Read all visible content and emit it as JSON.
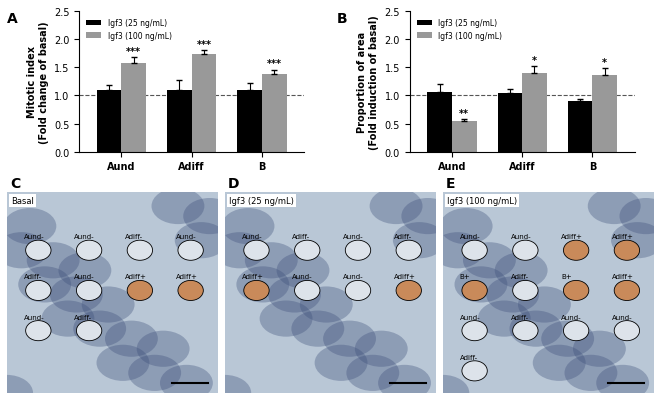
{
  "chart_data": [
    {
      "type": "bar",
      "panel": "A",
      "y_label": "Mitotic index\n(Fold change of basal)",
      "categories": [
        "Aund",
        "Adiff",
        "B"
      ],
      "series": [
        {
          "name": "Igf3 (25 ng/mL)",
          "color": "#000000",
          "values": [
            1.1,
            1.1,
            1.09
          ],
          "errors": [
            0.08,
            0.18,
            0.13
          ]
        },
        {
          "name": "Igf3 (100 ng/mL)",
          "color": "#999999",
          "values": [
            1.58,
            1.73,
            1.39
          ],
          "errors": [
            0.1,
            0.08,
            0.07
          ],
          "significance": [
            "***",
            "***",
            "***"
          ]
        }
      ],
      "baseline": 1.0,
      "ylim": [
        0,
        2.5
      ],
      "yticks": [
        {
          "value": 0,
          "label": "0.0"
        },
        {
          "value": 0.5,
          "label": "0.5"
        },
        {
          "value": 1,
          "label": "1.0"
        },
        {
          "value": 1.5,
          "label": "1.5"
        },
        {
          "value": 2,
          "label": "2.0"
        },
        {
          "value": 2.5,
          "label": "2.5"
        }
      ],
      "legend": "upper left"
    },
    {
      "type": "bar",
      "panel": "B",
      "y_label": "Proportion of area\n(Fold induction of basal)",
      "categories": [
        "Aund",
        "Adiff",
        "B"
      ],
      "series": [
        {
          "name": "Igf3 (25 ng/mL)",
          "color": "#000000",
          "values": [
            1.07,
            1.04,
            0.9
          ],
          "errors": [
            0.13,
            0.08,
            0.04
          ]
        },
        {
          "name": "Igf3 (100 ng/mL)",
          "color": "#999999",
          "values": [
            0.54,
            1.4,
            1.37
          ],
          "errors": [
            0.04,
            0.13,
            0.12
          ],
          "significance": [
            "**",
            "*",
            "*"
          ]
        }
      ],
      "baseline": 1.0,
      "ylim": [
        0,
        2.5
      ],
      "yticks": [
        {
          "value": 0,
          "label": "0.0"
        },
        {
          "value": 0.5,
          "label": "0.5"
        },
        {
          "value": 1,
          "label": "1.0"
        },
        {
          "value": 1.5,
          "label": "1.5"
        },
        {
          "value": 2,
          "label": "2.0"
        },
        {
          "value": 2.5,
          "label": "2.5"
        }
      ],
      "legend": "upper left"
    }
  ],
  "images": [
    {
      "panel": "C",
      "label": "Basal",
      "cell_labels": [
        "Aund-",
        "Aund-",
        "Adiff-",
        "Aund-",
        "Adiff-",
        "Aund-",
        "Adiff+",
        "Adiff+",
        "Aund-",
        "Adiff-"
      ]
    },
    {
      "panel": "D",
      "label": "Igf3 (25 ng/mL)",
      "cell_labels": [
        "Aund-",
        "Adiff-",
        "Aund-",
        "Adiff-",
        "Adiff+",
        "Aund-",
        "Aund-",
        "Adiff+"
      ]
    },
    {
      "panel": "E",
      "label": "Igf3 (100 ng/mL)",
      "cell_labels": [
        "Aund-",
        "Aund-",
        "Adiff+",
        "Adiff+",
        "B+",
        "Adiff-",
        "B+",
        "Adiff+",
        "Aund-",
        "Adiff-",
        "Aund-",
        "Aund-",
        "Adiff-"
      ]
    }
  ]
}
